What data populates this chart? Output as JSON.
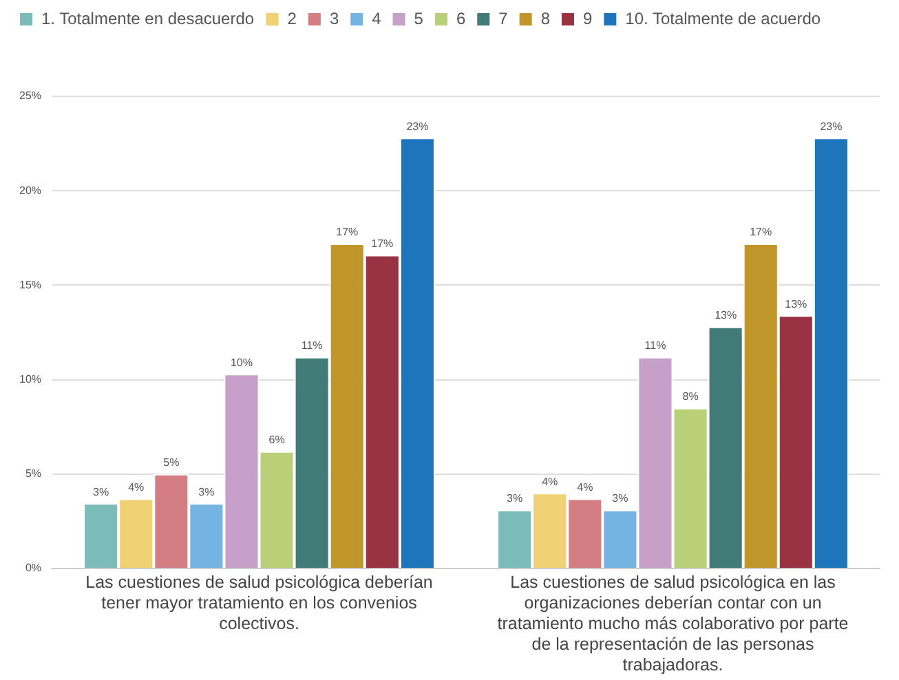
{
  "chart_data": {
    "type": "bar",
    "categories": [
      "Las cuestiones de salud psicológica deberían tener mayor tratamiento en los convenios colectivos.",
      "Las cuestiones de salud psicológica en las organizaciones deberían contar con un tratamiento mucho más colaborativo por parte de la representación de las personas trabajadoras."
    ],
    "series": [
      {
        "name": "1. Totalmente en desacuerdo",
        "color": "#7bbcb8",
        "values": [
          3.45,
          3.1
        ],
        "value_labels": [
          "3%",
          "3%"
        ]
      },
      {
        "name": "2",
        "color": "#f0d173",
        "values": [
          3.7,
          4.0
        ],
        "value_labels": [
          "4%",
          "4%"
        ]
      },
      {
        "name": "3",
        "color": "#d47e84",
        "values": [
          5.0,
          3.7
        ],
        "value_labels": [
          "5%",
          "4%"
        ]
      },
      {
        "name": "4",
        "color": "#74b3e2",
        "values": [
          3.45,
          3.1
        ],
        "value_labels": [
          "3%",
          "3%"
        ]
      },
      {
        "name": "5",
        "color": "#c6a0c9",
        "values": [
          10.3,
          11.2
        ],
        "value_labels": [
          "10%",
          "11%"
        ]
      },
      {
        "name": "6",
        "color": "#b9d078",
        "values": [
          6.2,
          8.5
        ],
        "value_labels": [
          "6%",
          "8%"
        ]
      },
      {
        "name": "7",
        "color": "#407b78",
        "values": [
          11.2,
          12.8
        ],
        "value_labels": [
          "11%",
          "13%"
        ]
      },
      {
        "name": "8",
        "color": "#c0962b",
        "values": [
          17.2,
          17.2
        ],
        "value_labels": [
          "17%",
          "17%"
        ]
      },
      {
        "name": "9",
        "color": "#993343",
        "values": [
          16.6,
          13.4
        ],
        "value_labels": [
          "17%",
          "13%"
        ]
      },
      {
        "name": "10. Totalmente de acuerdo",
        "color": "#1f75bb",
        "values": [
          22.8,
          22.8
        ],
        "value_labels": [
          "23%",
          "23%"
        ]
      }
    ],
    "ylim": [
      0,
      25
    ],
    "yticks": [
      {
        "value": 0,
        "label": "0%"
      },
      {
        "value": 5,
        "label": "5%"
      },
      {
        "value": 10,
        "label": "10%"
      },
      {
        "value": 15,
        "label": "15%"
      },
      {
        "value": 20,
        "label": "20%"
      },
      {
        "value": 25,
        "label": "25%"
      }
    ],
    "grid": "y",
    "legend": "top"
  }
}
